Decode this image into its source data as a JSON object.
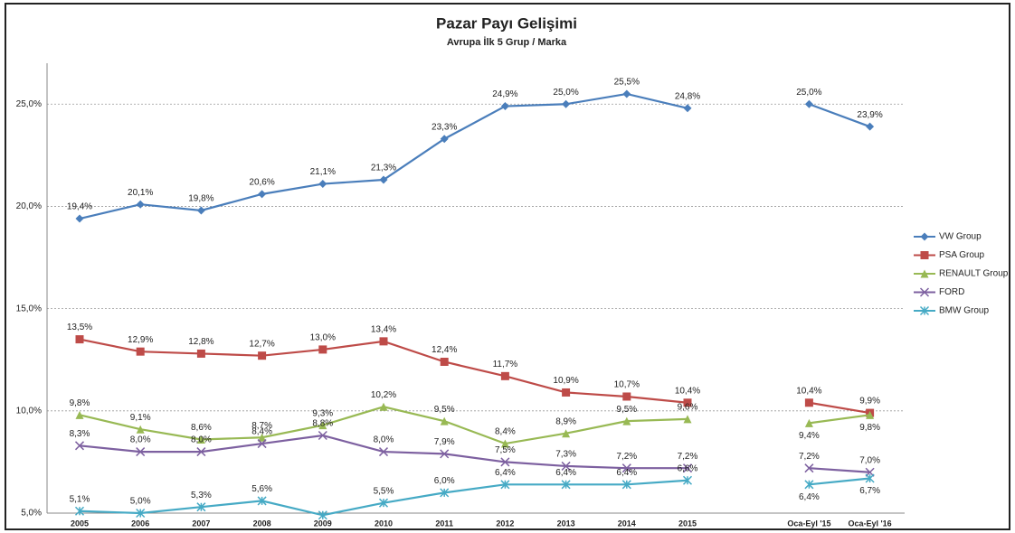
{
  "chart_data": {
    "type": "line",
    "title": "Pazar Payı Gelişimi",
    "subtitle": "Avrupa İlk 5 Grup / Marka",
    "categories": [
      "2005",
      "2006",
      "2007",
      "2008",
      "2009",
      "2010",
      "2011",
      "2012",
      "2013",
      "2014",
      "2015",
      null,
      "Oca-Eyl '15",
      "Oca-Eyl '16"
    ],
    "ylim": [
      5,
      27
    ],
    "yticks": [
      {
        "value": 5,
        "label": "5,0%"
      },
      {
        "value": 10,
        "label": "10,0%"
      },
      {
        "value": 15,
        "label": "15,0%"
      },
      {
        "value": 20,
        "label": "20,0%"
      },
      {
        "value": 25,
        "label": "25,0%"
      }
    ],
    "grid": true,
    "legend": "right",
    "series": [
      {
        "name": "VW Group",
        "color": "#4a7ebb",
        "marker": "diamond",
        "values": [
          19.4,
          20.1,
          19.8,
          20.6,
          21.1,
          21.3,
          23.3,
          24.9,
          25.0,
          25.5,
          24.8,
          null,
          25.0,
          23.9
        ],
        "value_labels": [
          "19,4%",
          "20,1%",
          "19,8%",
          "20,6%",
          "21,1%",
          "21,3%",
          "23,3%",
          "24,9%",
          "25,0%",
          "25,5%",
          "24,8%",
          null,
          "25,0%",
          "23,9%"
        ]
      },
      {
        "name": "PSA Group",
        "color": "#be4b48",
        "marker": "square",
        "values": [
          13.5,
          12.9,
          12.8,
          12.7,
          13.0,
          13.4,
          12.4,
          11.7,
          10.9,
          10.7,
          10.4,
          null,
          10.4,
          9.9
        ],
        "value_labels": [
          "13,5%",
          "12,9%",
          "12,8%",
          "12,7%",
          "13,0%",
          "13,4%",
          "12,4%",
          "11,7%",
          "10,9%",
          "10,7%",
          "10,4%",
          null,
          "10,4%",
          "9,9%"
        ]
      },
      {
        "name": "RENAULT Group",
        "color": "#98b954",
        "marker": "triangle",
        "values": [
          9.8,
          9.1,
          8.6,
          8.7,
          9.3,
          10.2,
          9.5,
          8.4,
          8.9,
          9.5,
          9.6,
          null,
          9.4,
          9.8
        ],
        "value_labels": [
          "9,8%",
          "9,1%",
          "8,6%",
          "8,7%",
          "9,3%",
          "10,2%",
          "9,5%",
          "8,4%",
          "8,9%",
          "9,5%",
          "9,6%",
          null,
          "9,4%",
          "9,8%"
        ]
      },
      {
        "name": "FORD",
        "color": "#7d60a0",
        "marker": "x",
        "values": [
          8.3,
          8.0,
          8.0,
          8.4,
          8.8,
          8.0,
          7.9,
          7.5,
          7.3,
          7.2,
          7.2,
          null,
          7.2,
          7.0
        ],
        "value_labels": [
          "8,3%",
          "8,0%",
          "8,0%",
          "8,4%",
          "8,8%",
          "8,0%",
          "7,9%",
          "7,5%",
          "7,3%",
          "7,2%",
          "7,2%",
          null,
          "7,2%",
          "7,0%"
        ]
      },
      {
        "name": "BMW Group",
        "color": "#46aac5",
        "marker": "star",
        "values": [
          5.1,
          5.0,
          5.3,
          5.6,
          4.9,
          5.5,
          6.0,
          6.4,
          6.4,
          6.4,
          6.6,
          null,
          6.4,
          6.7
        ],
        "value_labels": [
          "5,1%",
          "5,0%",
          "5,3%",
          "5,6%",
          null,
          "5,5%",
          "6,0%",
          "6,4%",
          "6,4%",
          "6,4%",
          "6,6%",
          null,
          "6,4%",
          "6,7%"
        ]
      }
    ]
  }
}
